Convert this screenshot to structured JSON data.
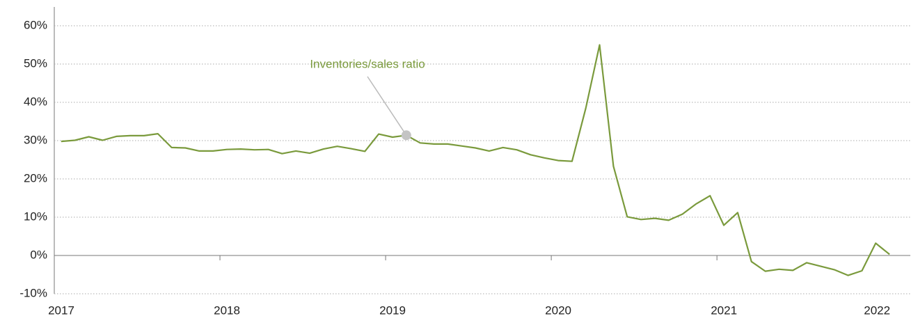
{
  "chart_data": {
    "type": "line",
    "categories": [
      "2017",
      null,
      null,
      null,
      null,
      null,
      null,
      null,
      null,
      null,
      null,
      null,
      "2018",
      null,
      null,
      null,
      null,
      null,
      null,
      null,
      null,
      null,
      null,
      null,
      "2019",
      null,
      null,
      null,
      null,
      null,
      null,
      null,
      null,
      null,
      null,
      null,
      "2020",
      null,
      null,
      null,
      null,
      null,
      null,
      null,
      null,
      null,
      null,
      null,
      "2021",
      null,
      null,
      null,
      null,
      null,
      null,
      null,
      null,
      null,
      null,
      null,
      "2022"
    ],
    "series": [
      {
        "name": "Inventories/sales ratio",
        "color": "#7a9a3c",
        "values": [
          29.8,
          30.1,
          31.0,
          30.1,
          31.1,
          31.3,
          31.3,
          31.8,
          28.2,
          28.1,
          27.3,
          27.3,
          27.7,
          27.8,
          27.6,
          27.7,
          26.6,
          27.3,
          26.7,
          27.8,
          28.5,
          27.9,
          27.2,
          31.7,
          30.9,
          31.4,
          29.4,
          29.1,
          29.1,
          28.6,
          28.1,
          27.3,
          28.2,
          27.6,
          26.3,
          25.5,
          24.8,
          24.6,
          38.5,
          55.0,
          23.3,
          10.1,
          9.4,
          9.7,
          9.2,
          10.8,
          13.5,
          15.6,
          7.9,
          11.2,
          -1.6,
          -4.1,
          -3.6,
          -3.9,
          -1.9,
          -2.8,
          -3.7,
          -5.2,
          -4.0,
          3.2,
          0.3
        ]
      }
    ],
    "annotation": "Inventories/sales ratio",
    "ylim": [
      -10,
      60
    ],
    "yticks": [
      {
        "value": -10,
        "label": "-10%"
      },
      {
        "value": 0,
        "label": "0%"
      },
      {
        "value": 10,
        "label": "10%"
      },
      {
        "value": 20,
        "label": "20%"
      },
      {
        "value": 30,
        "label": "30%"
      },
      {
        "value": 40,
        "label": "40%"
      },
      {
        "value": 50,
        "label": "50%"
      },
      {
        "value": 60,
        "label": "60%"
      }
    ],
    "grid": true
  }
}
